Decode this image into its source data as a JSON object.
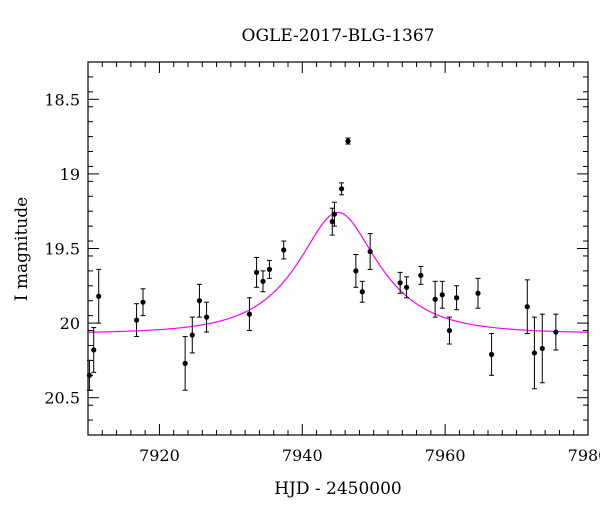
{
  "chart_data": {
    "type": "scatter",
    "title": "OGLE-2017-BLG-1367",
    "xlabel": "HJD - 2450000",
    "ylabel": "I magnitude",
    "xlim": [
      7910,
      7980
    ],
    "ylim": [
      20.75,
      18.25
    ],
    "y_inverted": true,
    "xticks": [
      {
        "value": 7920,
        "label": "7920"
      },
      {
        "value": 7940,
        "label": "7940"
      },
      {
        "value": 7960,
        "label": "7960"
      },
      {
        "value": 7980,
        "label": "7980"
      }
    ],
    "yticks": [
      {
        "value": 18.5,
        "label": "18.5"
      },
      {
        "value": 19.0,
        "label": "19"
      },
      {
        "value": 19.5,
        "label": "19.5"
      },
      {
        "value": 20.0,
        "label": "20"
      },
      {
        "value": 20.5,
        "label": "20.5"
      }
    ],
    "points": [
      {
        "x": 7910.2,
        "y": 20.35,
        "err": 0.1
      },
      {
        "x": 7910.8,
        "y": 20.18,
        "err": 0.15
      },
      {
        "x": 7911.5,
        "y": 19.82,
        "err": 0.18
      },
      {
        "x": 7916.8,
        "y": 19.98,
        "err": 0.11
      },
      {
        "x": 7917.7,
        "y": 19.86,
        "err": 0.09
      },
      {
        "x": 7923.6,
        "y": 20.27,
        "err": 0.18
      },
      {
        "x": 7924.6,
        "y": 20.08,
        "err": 0.12
      },
      {
        "x": 7925.6,
        "y": 19.85,
        "err": 0.11
      },
      {
        "x": 7926.6,
        "y": 19.96,
        "err": 0.1
      },
      {
        "x": 7932.6,
        "y": 19.94,
        "err": 0.11
      },
      {
        "x": 7933.6,
        "y": 19.66,
        "err": 0.1
      },
      {
        "x": 7934.5,
        "y": 19.72,
        "err": 0.07
      },
      {
        "x": 7935.4,
        "y": 19.64,
        "err": 0.06
      },
      {
        "x": 7937.4,
        "y": 19.51,
        "err": 0.06
      },
      {
        "x": 7944.2,
        "y": 19.32,
        "err": 0.09
      },
      {
        "x": 7944.5,
        "y": 19.27,
        "err": 0.08
      },
      {
        "x": 7945.5,
        "y": 19.1,
        "err": 0.04
      },
      {
        "x": 7946.4,
        "y": 18.78,
        "err": 0.02
      },
      {
        "x": 7947.5,
        "y": 19.65,
        "err": 0.11
      },
      {
        "x": 7948.4,
        "y": 19.79,
        "err": 0.07
      },
      {
        "x": 7949.5,
        "y": 19.52,
        "err": 0.12
      },
      {
        "x": 7953.7,
        "y": 19.73,
        "err": 0.07
      },
      {
        "x": 7954.6,
        "y": 19.76,
        "err": 0.07
      },
      {
        "x": 7956.6,
        "y": 19.68,
        "err": 0.06
      },
      {
        "x": 7958.6,
        "y": 19.84,
        "err": 0.12
      },
      {
        "x": 7959.6,
        "y": 19.81,
        "err": 0.09
      },
      {
        "x": 7960.6,
        "y": 20.05,
        "err": 0.09
      },
      {
        "x": 7961.6,
        "y": 19.83,
        "err": 0.08
      },
      {
        "x": 7964.6,
        "y": 19.8,
        "err": 0.1
      },
      {
        "x": 7966.5,
        "y": 20.21,
        "err": 0.14
      },
      {
        "x": 7971.5,
        "y": 19.89,
        "err": 0.18
      },
      {
        "x": 7972.5,
        "y": 20.2,
        "err": 0.24
      },
      {
        "x": 7973.6,
        "y": 20.17,
        "err": 0.23
      },
      {
        "x": 7975.5,
        "y": 20.06,
        "err": 0.12
      }
    ],
    "model": {
      "name": "",
      "color": "#ff00ff",
      "t0": 7945.0,
      "u0": 0.52,
      "tE": 9.5,
      "baseline_mag": 20.07
    },
    "grid": false,
    "legend": "none",
    "point_color": "#000000"
  }
}
